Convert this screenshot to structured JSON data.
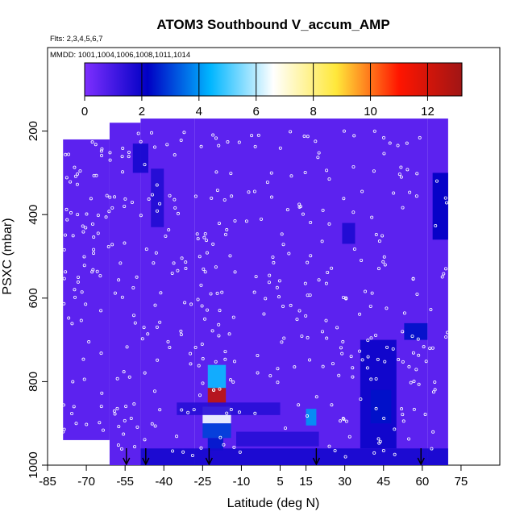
{
  "chart_data": {
    "type": "heatmap",
    "title": "ATOM3 Southbound V_accum_AMP",
    "flights_label": "Flts: 2,3,4,5,6,7",
    "dates_label": "MMDD: 1001,1004,1006,1008,1011,1014",
    "xlabel": "Latitude (deg N)",
    "ylabel": "PSXC (mbar)",
    "xlim": [
      -85,
      90
    ],
    "ylim": [
      1000,
      0
    ],
    "x_ticks": [
      "-85",
      "-70",
      "-55",
      "-40",
      "-25",
      "-10",
      "5",
      "15",
      "30",
      "45",
      "60",
      "75"
    ],
    "x_tick_values": [
      -85,
      -70,
      -55,
      -40,
      -25,
      -10,
      5,
      15,
      30,
      45,
      60,
      75
    ],
    "y_ticks": [
      "200",
      "400",
      "600",
      "800",
      "1000"
    ],
    "y_tick_values": [
      200,
      400,
      600,
      800,
      1000
    ],
    "colorbar": {
      "ticks": [
        "0",
        "2",
        "4",
        "6",
        "8",
        "10",
        "12"
      ],
      "tick_values": [
        0,
        2,
        4,
        6,
        8,
        10,
        12
      ],
      "range": [
        0,
        13.2
      ],
      "colors": [
        "#7e2fff",
        "#0000c4",
        "#00b6ff",
        "#ffffff",
        "#ffe83a",
        "#ff1500",
        "#a01515"
      ]
    },
    "background_value": 0.6,
    "coverage": [
      {
        "lat": [
          -79,
          -61
        ],
        "p": [
          220,
          940
        ]
      },
      {
        "lat": [
          -61,
          -49
        ],
        "p": [
          180,
          1000
        ]
      },
      {
        "lat": [
          -49,
          -28
        ],
        "p": [
          170,
          1000
        ]
      },
      {
        "lat": [
          -28,
          62
        ],
        "p": [
          170,
          1000
        ]
      },
      {
        "lat": [
          62,
          70
        ],
        "p": [
          170,
          1000
        ]
      }
    ],
    "hotspots": [
      {
        "lat": [
          -23,
          -16
        ],
        "p": [
          815,
          860
        ],
        "value": 12.5
      },
      {
        "lat": [
          -25,
          -14
        ],
        "p": [
          860,
          900
        ],
        "value": 6.5
      },
      {
        "lat": [
          -23,
          -16
        ],
        "p": [
          760,
          815
        ],
        "value": 4.5
      },
      {
        "lat": [
          -25,
          -14
        ],
        "p": [
          900,
          935
        ],
        "value": 3.0
      },
      {
        "lat": [
          -23,
          -17
        ],
        "p": [
          935,
          965
        ],
        "value": 2.5
      },
      {
        "lat": [
          15,
          19
        ],
        "p": [
          865,
          905
        ],
        "value": 4.0
      },
      {
        "lat": [
          36,
          50
        ],
        "p": [
          700,
          960
        ],
        "value": 2.0
      },
      {
        "lat": [
          40,
          48
        ],
        "p": [
          820,
          900
        ],
        "value": 2.4
      },
      {
        "lat": [
          53,
          62
        ],
        "p": [
          660,
          700
        ],
        "value": 2.4
      },
      {
        "lat": [
          64,
          70
        ],
        "p": [
          300,
          460
        ],
        "value": 2.2
      },
      {
        "lat": [
          29,
          34
        ],
        "p": [
          420,
          470
        ],
        "value": 1.7
      },
      {
        "lat": [
          -45,
          -40
        ],
        "p": [
          290,
          430
        ],
        "value": 1.6
      },
      {
        "lat": [
          -52,
          -46
        ],
        "p": [
          230,
          300
        ],
        "value": 1.8
      },
      {
        "lat": [
          -49,
          70
        ],
        "p": [
          960,
          1000
        ],
        "value": 1.8
      },
      {
        "lat": [
          -35,
          5
        ],
        "p": [
          850,
          880
        ],
        "value": 1.5
      },
      {
        "lat": [
          -12,
          20
        ],
        "p": [
          920,
          955
        ],
        "value": 1.5
      }
    ],
    "flight_markers": [
      -54.5,
      -47,
      -22.5,
      19,
      59.5
    ],
    "sample_points_symbol": "open-circle"
  }
}
